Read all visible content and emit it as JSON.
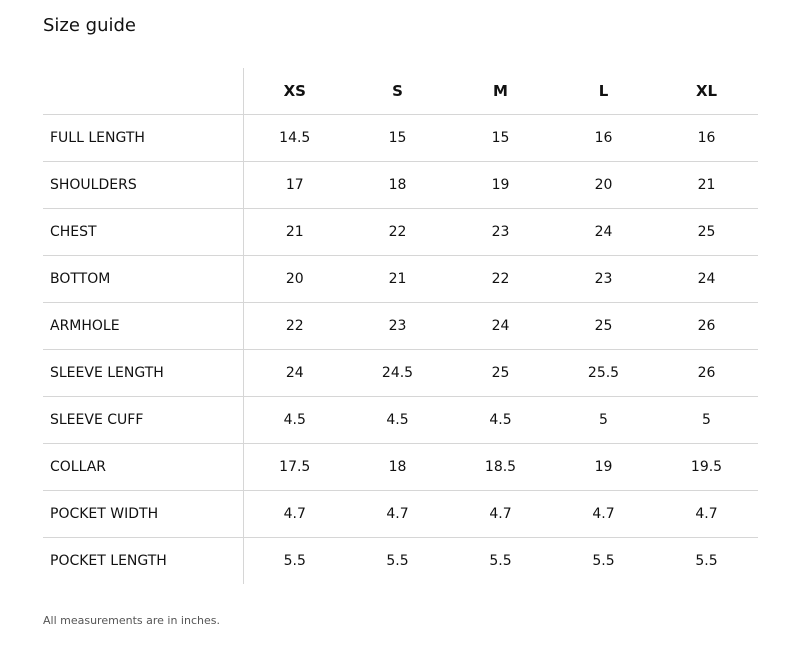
{
  "title": "Size guide",
  "table": {
    "sizes": [
      "XS",
      "S",
      "M",
      "L",
      "XL"
    ],
    "rows": [
      {
        "label": "FULL LENGTH",
        "values": [
          "14.5",
          "15",
          "15",
          "16",
          "16"
        ]
      },
      {
        "label": "SHOULDERS",
        "values": [
          "17",
          "18",
          "19",
          "20",
          "21"
        ]
      },
      {
        "label": "CHEST",
        "values": [
          "21",
          "22",
          "23",
          "24",
          "25"
        ]
      },
      {
        "label": "BOTTOM",
        "values": [
          "20",
          "21",
          "22",
          "23",
          "24"
        ]
      },
      {
        "label": "ARMHOLE",
        "values": [
          "22",
          "23",
          "24",
          "25",
          "26"
        ]
      },
      {
        "label": "SLEEVE LENGTH",
        "values": [
          "24",
          "24.5",
          "25",
          "25.5",
          "26"
        ]
      },
      {
        "label": "SLEEVE CUFF",
        "values": [
          "4.5",
          "4.5",
          "4.5",
          "5",
          "5"
        ]
      },
      {
        "label": "COLLAR",
        "values": [
          "17.5",
          "18",
          "18.5",
          "19",
          "19.5"
        ]
      },
      {
        "label": "POCKET WIDTH",
        "values": [
          "4.7",
          "4.7",
          "4.7",
          "4.7",
          "4.7"
        ]
      },
      {
        "label": "POCKET LENGTH",
        "values": [
          "5.5",
          "5.5",
          "5.5",
          "5.5",
          "5.5"
        ]
      }
    ]
  },
  "note": "All measurements are in inches."
}
